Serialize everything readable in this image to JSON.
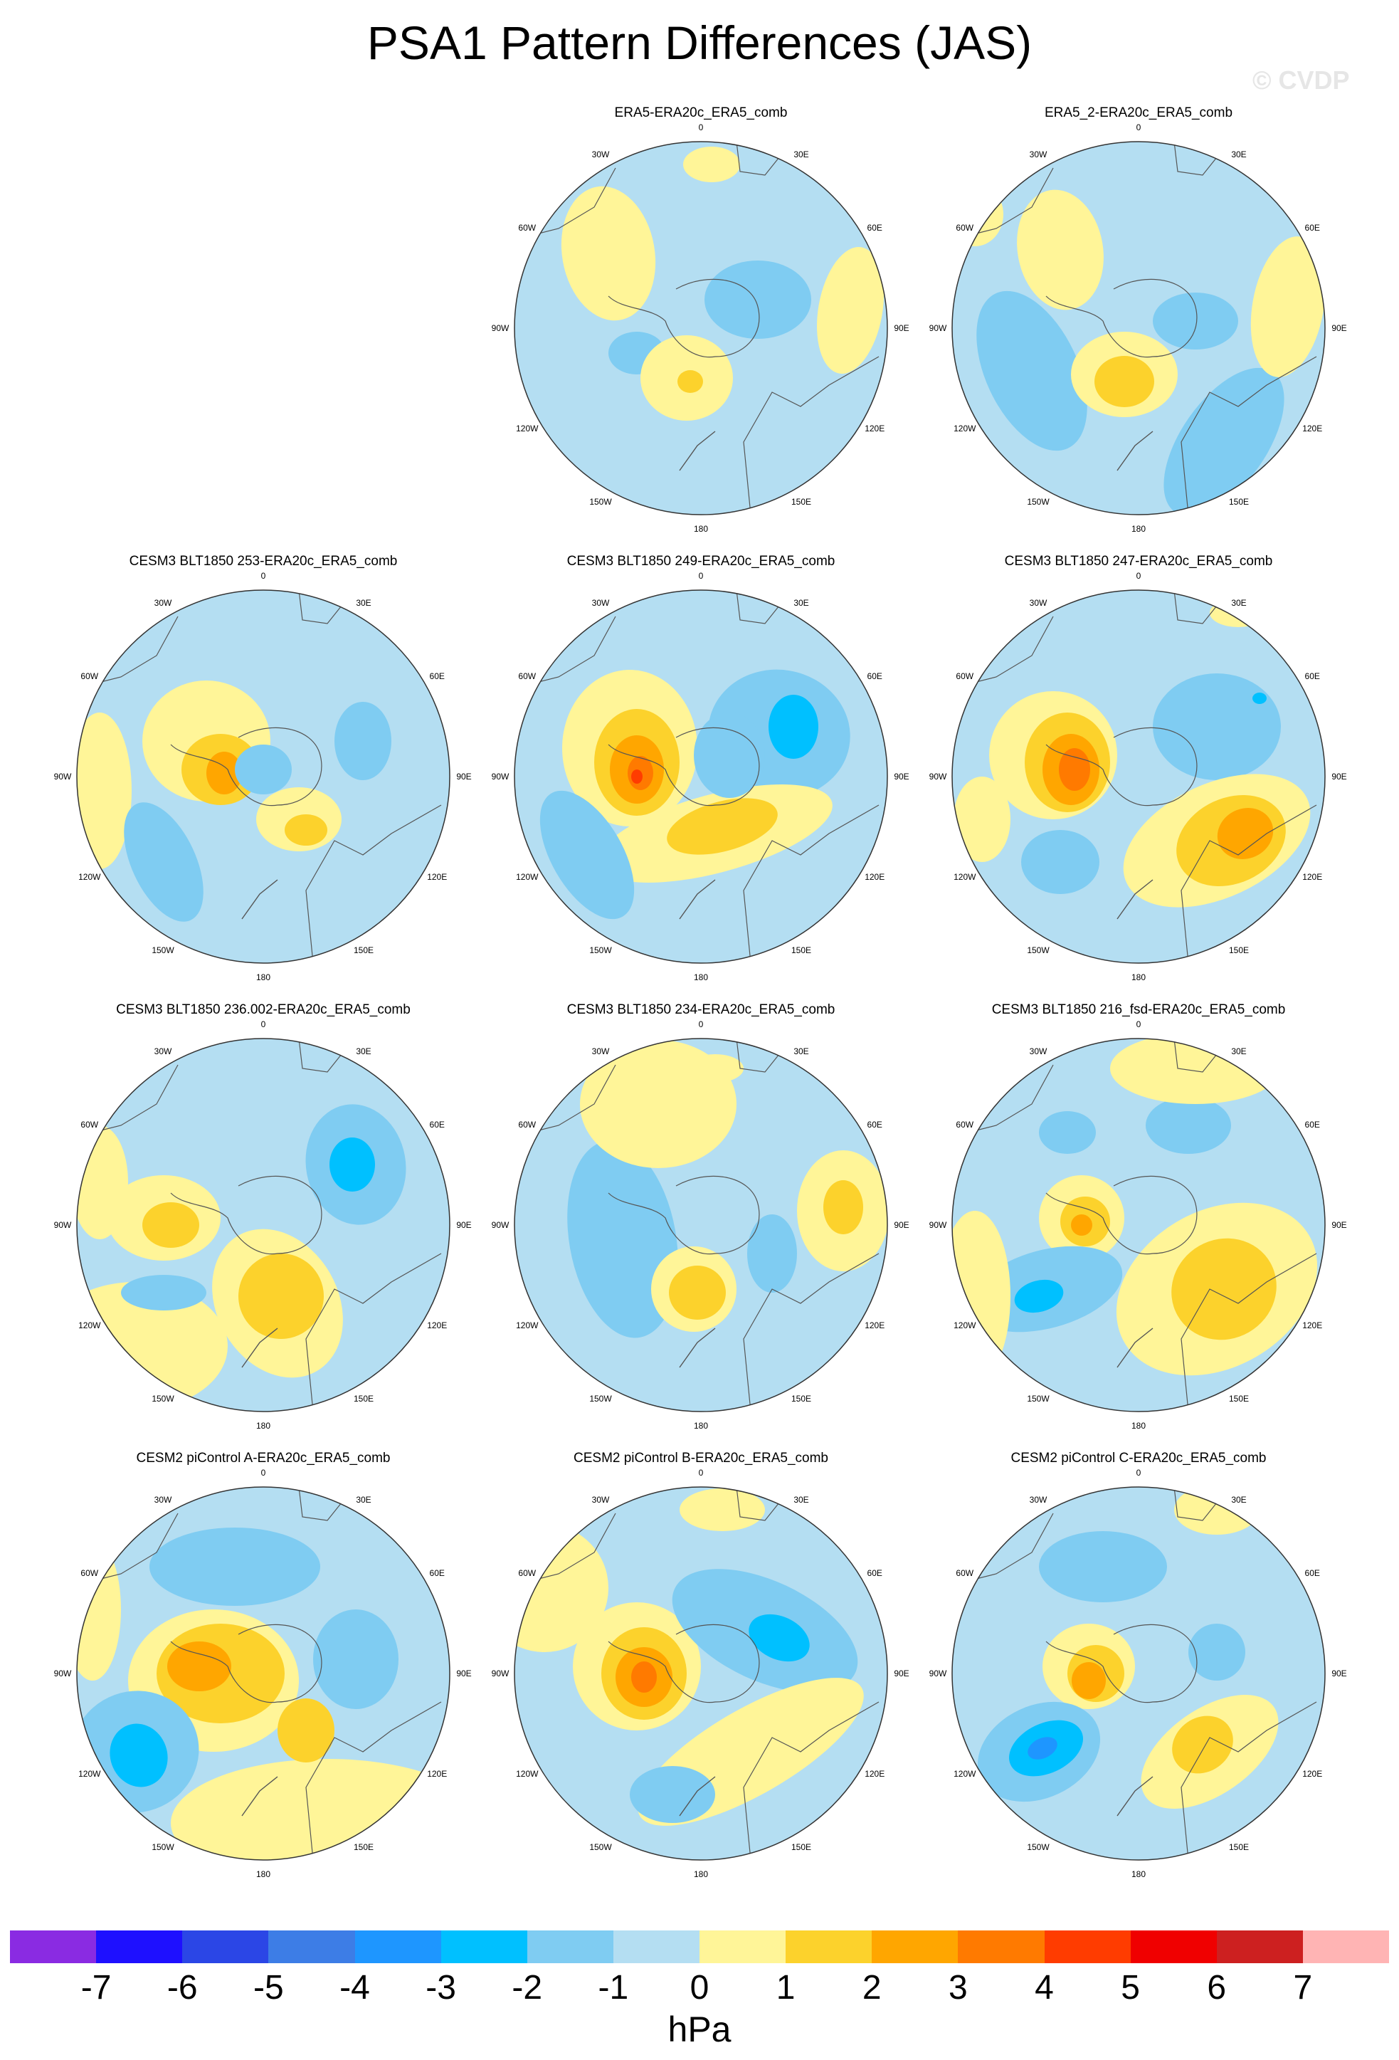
{
  "title": "PSA1 Pattern Differences (JAS)",
  "watermark": "© CVDP",
  "units": "hPa",
  "colorbar": {
    "colors": [
      "#8a2be2",
      "#1e10ff",
      "#2b46e6",
      "#3d7de6",
      "#1e96ff",
      "#00c0ff",
      "#7fccf2",
      "#b4def2",
      "#fff598",
      "#fcd22c",
      "#ffa600",
      "#ff7a00",
      "#ff3c00",
      "#f00000",
      "#cd2020",
      "#ffb4b4"
    ],
    "tick_labels": [
      "-7",
      "-6",
      "-5",
      "-4",
      "-3",
      "-2",
      "-1",
      "0",
      "1",
      "2",
      "3",
      "4",
      "5",
      "6",
      "7"
    ]
  },
  "map_labels": {
    "lon_0": "0",
    "lon_30e": "30E",
    "lon_60e": "60E",
    "lon_90e": "90E",
    "lon_120e": "120E",
    "lon_150e": "150E",
    "lon_180": "180",
    "lon_150w": "150W",
    "lon_120w": "120W",
    "lon_90w": "90W",
    "lon_60w": "60W",
    "lon_30w": "30W"
  },
  "panels": [
    {
      "title": "ERA5-ERA20c_ERA5_comb"
    },
    {
      "title": "ERA5_2-ERA20c_ERA5_comb"
    },
    {
      "title": "CESM3 BLT1850 253-ERA20c_ERA5_comb"
    },
    {
      "title": "CESM3 BLT1850 249-ERA20c_ERA5_comb"
    },
    {
      "title": "CESM3 BLT1850 247-ERA20c_ERA5_comb"
    },
    {
      "title": "CESM3 BLT1850 236.002-ERA20c_ERA5_comb"
    },
    {
      "title": "CESM3 BLT1850 234-ERA20c_ERA5_comb"
    },
    {
      "title": "CESM3 BLT1850 216_fsd-ERA20c_ERA5_comb"
    },
    {
      "title": "CESM2 piControl A-ERA20c_ERA5_comb"
    },
    {
      "title": "CESM2 piControl B-ERA20c_ERA5_comb"
    },
    {
      "title": "CESM2 piControl C-ERA20c_ERA5_comb"
    }
  ]
}
